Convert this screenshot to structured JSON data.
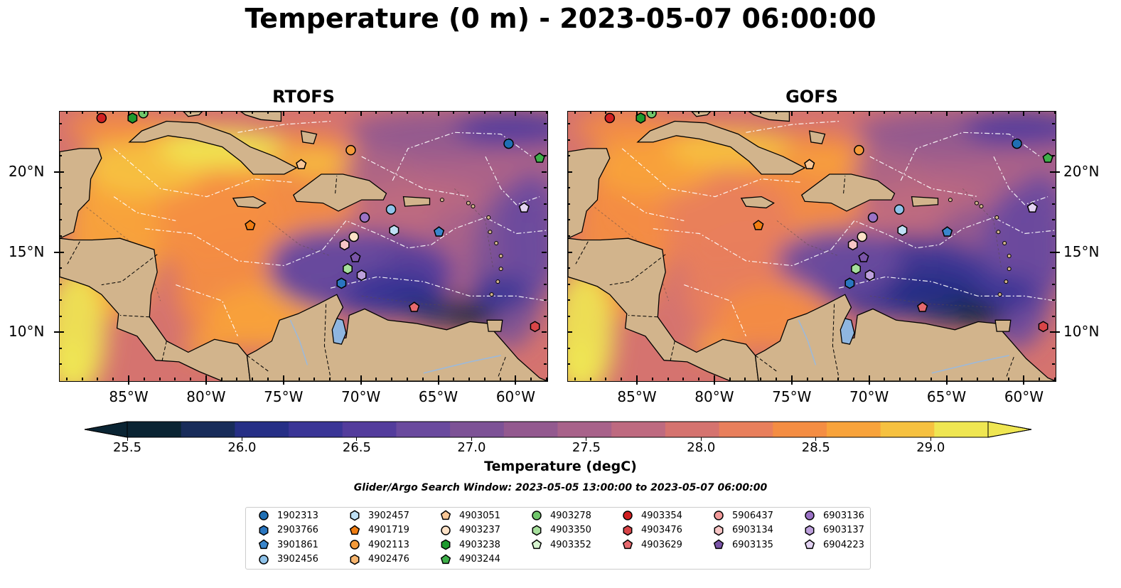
{
  "title": "Temperature (0 m) - 2023-05-07 06:00:00",
  "panels": [
    {
      "title": "RTOFS"
    },
    {
      "title": "GOFS"
    }
  ],
  "axes": {
    "x_ticks": [
      "85°W",
      "80°W",
      "75°W",
      "70°W",
      "65°W",
      "60°W"
    ],
    "y_ticks": [
      "20°N",
      "15°N",
      "10°N"
    ],
    "lon_range": [
      -89.5,
      -58.0
    ],
    "lat_range": [
      7.0,
      23.8
    ]
  },
  "colorbar": {
    "label": "Temperature (degC)",
    "ticks": [
      "25.5",
      "26.0",
      "26.5",
      "27.0",
      "27.5",
      "28.0",
      "28.5",
      "29.0"
    ],
    "range": [
      25.5,
      29.25
    ],
    "extend": "both",
    "colors": [
      "#0a2433",
      "#182c5a",
      "#262f86",
      "#3a3596",
      "#533c9c",
      "#6a4a9e",
      "#7d5296",
      "#93598f",
      "#a8628a",
      "#be6a80",
      "#d5736f",
      "#e87f5c",
      "#f48d43",
      "#f8a33b",
      "#f6c140",
      "#efe652"
    ]
  },
  "search_window": "Glider/Argo Search Window: 2023-05-05 13:00:00 to 2023-05-07 06:00:00",
  "legend": [
    {
      "id": "1902313",
      "marker": "circle",
      "color": "#1f6fb4"
    },
    {
      "id": "2903766",
      "marker": "hexagon",
      "color": "#2a76c0"
    },
    {
      "id": "3901861",
      "marker": "pentagon",
      "color": "#3a86cc"
    },
    {
      "id": "3902456",
      "marker": "circle",
      "color": "#8fc3ea"
    },
    {
      "id": "3902457",
      "marker": "hexagon",
      "color": "#bfe0f5"
    },
    {
      "id": "4901719",
      "marker": "pentagon",
      "color": "#f07d12"
    },
    {
      "id": "4902113",
      "marker": "circle",
      "color": "#f39a3a"
    },
    {
      "id": "4902476",
      "marker": "hexagon",
      "color": "#f7b56e"
    },
    {
      "id": "4903051",
      "marker": "pentagon",
      "color": "#f9c796"
    },
    {
      "id": "4903237",
      "marker": "circle",
      "color": "#fde2c7"
    },
    {
      "id": "4903238",
      "marker": "hexagon",
      "color": "#1d9a2e"
    },
    {
      "id": "4903244",
      "marker": "pentagon",
      "color": "#3fb04a"
    },
    {
      "id": "4903278",
      "marker": "circle",
      "color": "#70c66b"
    },
    {
      "id": "4903350",
      "marker": "hexagon",
      "color": "#a6df9c"
    },
    {
      "id": "4903352",
      "marker": "pentagon",
      "color": "#d6f3cf"
    },
    {
      "id": "4903354",
      "marker": "circle",
      "color": "#d11f21"
    },
    {
      "id": "4903476",
      "marker": "hexagon",
      "color": "#d84548"
    },
    {
      "id": "4903629",
      "marker": "pentagon",
      "color": "#e6696e"
    },
    {
      "id": "5906437",
      "marker": "circle",
      "color": "#f29a9a"
    },
    {
      "id": "6903134",
      "marker": "hexagon",
      "color": "#f8c6c6"
    },
    {
      "id": "6903135",
      "marker": "pentagon",
      "color": "#7a54a8"
    },
    {
      "id": "6903136",
      "marker": "circle",
      "color": "#9b72c6"
    },
    {
      "id": "6903137",
      "marker": "hexagon",
      "color": "#bda0dc"
    },
    {
      "id": "6904223",
      "marker": "pentagon",
      "color": "#e3d3f2"
    }
  ],
  "floats": [
    {
      "id": "4903354",
      "lon": -86.8,
      "lat": 23.4,
      "marker": "circle",
      "color": "#d11f21"
    },
    {
      "id": "4903238",
      "lon": -84.8,
      "lat": 23.4,
      "marker": "hexagon",
      "color": "#1d9a2e"
    },
    {
      "id": "4903278",
      "lon": -84.1,
      "lat": 23.7,
      "marker": "circle",
      "color": "#70c66b"
    },
    {
      "id": "4902113",
      "lon": -70.7,
      "lat": 21.4,
      "marker": "circle",
      "color": "#f39a3a"
    },
    {
      "id": "4903051",
      "lon": -73.9,
      "lat": 20.5,
      "marker": "pentagon",
      "color": "#f9c796"
    },
    {
      "id": "1902313",
      "lon": -60.5,
      "lat": 21.8,
      "marker": "circle",
      "color": "#1f6fb4"
    },
    {
      "id": "4903244",
      "lon": -58.5,
      "lat": 20.9,
      "marker": "pentagon",
      "color": "#3fb04a"
    },
    {
      "id": "6904223",
      "lon": -59.5,
      "lat": 17.8,
      "marker": "pentagon",
      "color": "#e3d3f2"
    },
    {
      "id": "3902456",
      "lon": -68.1,
      "lat": 17.7,
      "marker": "circle",
      "color": "#8fc3ea"
    },
    {
      "id": "6903136",
      "lon": -69.8,
      "lat": 17.2,
      "marker": "circle",
      "color": "#9b72c6"
    },
    {
      "id": "4901719",
      "lon": -77.2,
      "lat": 16.7,
      "marker": "pentagon",
      "color": "#f07d12"
    },
    {
      "id": "3902457",
      "lon": -67.9,
      "lat": 16.4,
      "marker": "hexagon",
      "color": "#bfe0f5"
    },
    {
      "id": "3901861",
      "lon": -65.0,
      "lat": 16.3,
      "marker": "pentagon",
      "color": "#3a86cc"
    },
    {
      "id": "4903237",
      "lon": -70.5,
      "lat": 16.0,
      "marker": "circle",
      "color": "#fde2c7"
    },
    {
      "id": "6903134",
      "lon": -71.1,
      "lat": 15.5,
      "marker": "hexagon",
      "color": "#f8c6c6"
    },
    {
      "id": "6903135",
      "lon": -70.4,
      "lat": 14.7,
      "marker": "pentagon",
      "color": "#7a54a8"
    },
    {
      "id": "4903350",
      "lon": -70.9,
      "lat": 14.0,
      "marker": "hexagon",
      "color": "#a6df9c"
    },
    {
      "id": "6903137",
      "lon": -70.0,
      "lat": 13.6,
      "marker": "hexagon",
      "color": "#bda0dc"
    },
    {
      "id": "2903766",
      "lon": -71.3,
      "lat": 13.1,
      "marker": "hexagon",
      "color": "#2a76c0"
    },
    {
      "id": "4903629",
      "lon": -66.6,
      "lat": 11.6,
      "marker": "pentagon",
      "color": "#e6696e"
    },
    {
      "id": "4903476",
      "lon": -58.8,
      "lat": 10.4,
      "marker": "hexagon",
      "color": "#d84548"
    }
  ]
}
